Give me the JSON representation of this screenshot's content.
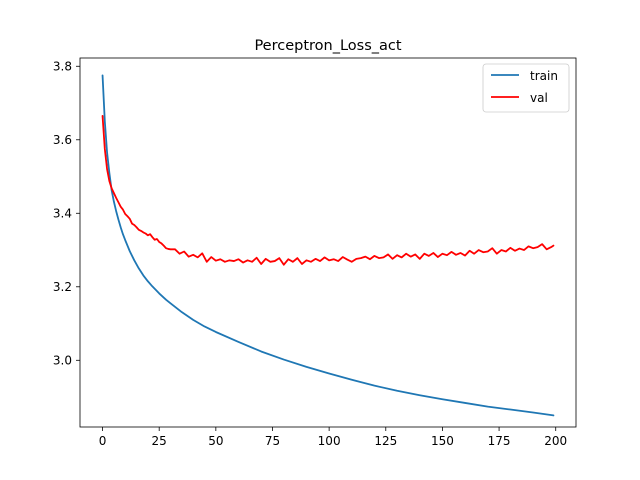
{
  "chart_data": {
    "type": "line",
    "title": "Perceptron_Loss_act",
    "xlabel": "",
    "ylabel": "",
    "xlim": [
      -9.95,
      208.95
    ],
    "ylim": [
      2.8185,
      3.8225
    ],
    "xticks": [
      0,
      25,
      50,
      75,
      100,
      125,
      150,
      175,
      200
    ],
    "xtick_labels": [
      "0",
      "25",
      "50",
      "75",
      "100",
      "125",
      "150",
      "175",
      "200"
    ],
    "yticks": [
      3.0,
      3.2,
      3.4,
      3.6,
      3.8
    ],
    "ytick_labels": [
      "3.0",
      "3.2",
      "3.4",
      "3.6",
      "3.8"
    ],
    "grid": false,
    "legend_position": "top-right",
    "colors": {
      "train": "#1f77b4",
      "val": "#ff0000"
    },
    "series": [
      {
        "name": "train",
        "x": [
          0,
          1,
          2,
          3,
          4,
          5,
          6,
          7,
          8,
          9,
          10,
          12,
          14,
          16,
          18,
          20,
          22,
          25,
          28,
          30,
          35,
          40,
          45,
          50,
          60,
          70,
          80,
          90,
          100,
          110,
          120,
          130,
          140,
          150,
          160,
          170,
          180,
          190,
          199
        ],
        "values": [
          3.775,
          3.65,
          3.565,
          3.51,
          3.463,
          3.432,
          3.406,
          3.383,
          3.362,
          3.343,
          3.327,
          3.297,
          3.272,
          3.25,
          3.231,
          3.215,
          3.201,
          3.182,
          3.165,
          3.155,
          3.131,
          3.11,
          3.092,
          3.077,
          3.05,
          3.024,
          3.002,
          2.982,
          2.964,
          2.947,
          2.931,
          2.917,
          2.905,
          2.894,
          2.884,
          2.874,
          2.866,
          2.858,
          2.85
        ]
      },
      {
        "name": "val",
        "x": [
          0,
          1,
          2,
          3,
          4,
          5,
          6,
          7,
          8,
          9,
          10,
          11,
          12,
          13,
          14,
          15,
          16,
          17,
          18,
          19,
          20,
          21,
          22,
          23,
          24,
          25,
          26,
          27,
          28,
          29,
          30,
          32,
          34,
          36,
          38,
          40,
          42,
          44,
          46,
          48,
          50,
          52,
          54,
          56,
          58,
          60,
          62,
          64,
          66,
          68,
          70,
          72,
          74,
          76,
          78,
          80,
          82,
          84,
          86,
          88,
          90,
          92,
          94,
          96,
          98,
          100,
          102,
          104,
          106,
          108,
          110,
          112,
          114,
          116,
          118,
          120,
          122,
          124,
          126,
          128,
          130,
          132,
          134,
          136,
          138,
          140,
          142,
          144,
          146,
          148,
          150,
          152,
          154,
          156,
          158,
          160,
          162,
          164,
          166,
          168,
          170,
          172,
          174,
          176,
          178,
          180,
          182,
          184,
          186,
          188,
          190,
          192,
          194,
          196,
          198,
          199
        ],
        "values": [
          3.665,
          3.575,
          3.52,
          3.488,
          3.468,
          3.455,
          3.442,
          3.43,
          3.418,
          3.41,
          3.398,
          3.392,
          3.385,
          3.372,
          3.368,
          3.362,
          3.355,
          3.352,
          3.348,
          3.345,
          3.34,
          3.343,
          3.335,
          3.328,
          3.33,
          3.322,
          3.318,
          3.312,
          3.305,
          3.303,
          3.302,
          3.302,
          3.29,
          3.296,
          3.282,
          3.287,
          3.28,
          3.291,
          3.268,
          3.281,
          3.271,
          3.275,
          3.268,
          3.272,
          3.27,
          3.275,
          3.266,
          3.272,
          3.268,
          3.279,
          3.262,
          3.276,
          3.268,
          3.27,
          3.278,
          3.26,
          3.275,
          3.268,
          3.278,
          3.262,
          3.272,
          3.268,
          3.276,
          3.27,
          3.28,
          3.272,
          3.275,
          3.27,
          3.281,
          3.274,
          3.268,
          3.276,
          3.278,
          3.282,
          3.275,
          3.284,
          3.278,
          3.28,
          3.288,
          3.276,
          3.286,
          3.28,
          3.29,
          3.282,
          3.288,
          3.276,
          3.29,
          3.284,
          3.292,
          3.281,
          3.29,
          3.286,
          3.295,
          3.287,
          3.292,
          3.285,
          3.298,
          3.29,
          3.3,
          3.294,
          3.296,
          3.305,
          3.29,
          3.3,
          3.296,
          3.306,
          3.298,
          3.304,
          3.3,
          3.31,
          3.305,
          3.308,
          3.316,
          3.302,
          3.308,
          3.312
        ]
      }
    ]
  }
}
